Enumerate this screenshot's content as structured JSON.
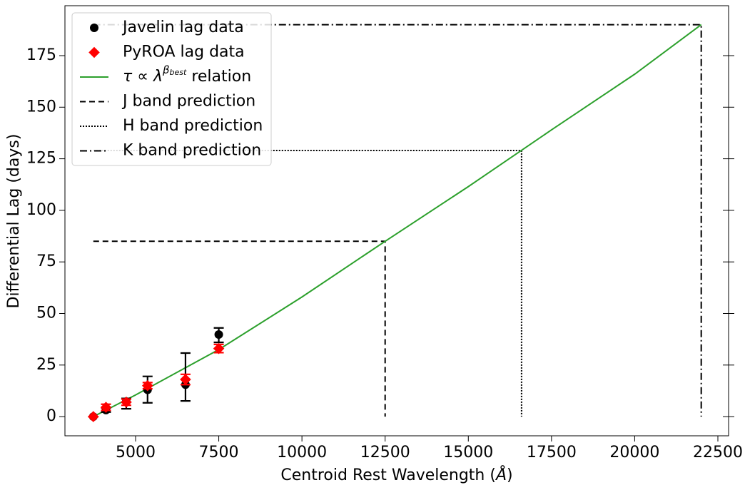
{
  "chart_data": {
    "type": "scatter",
    "xlabel": "Centroid Rest Wavelength (",
    "xlabel_unit": "Å",
    "xlabel_end": ")",
    "ylabel": "Differential Lag (days)",
    "xlim": [
      2877,
      22822
    ],
    "ylim": [
      -9.3,
      199.2
    ],
    "xticks": [
      5000,
      7500,
      10000,
      12500,
      15000,
      17500,
      20000,
      22500
    ],
    "yticks": [
      0,
      25,
      50,
      75,
      100,
      125,
      150,
      175
    ],
    "series": [
      {
        "name": "Javelin lag data",
        "color": "#000000",
        "marker": "circle",
        "x": [
          3730,
          4110,
          4720,
          5360,
          6500,
          7500
        ],
        "values": [
          0,
          3.2,
          7.3,
          13,
          15.5,
          39.8
        ],
        "err_minus": [
          0,
          1,
          3.5,
          6.3,
          7.9,
          3.8
        ],
        "err_plus": [
          0,
          1,
          1.5,
          6.5,
          15.3,
          3.2
        ]
      },
      {
        "name": "PyROA lag data",
        "color": "#ff0000",
        "marker": "diamond",
        "x": [
          3730,
          4110,
          4720,
          5360,
          6500,
          7500
        ],
        "values": [
          0,
          4.5,
          7,
          15,
          18,
          33
        ],
        "err_minus": [
          0,
          1.5,
          1.5,
          1.5,
          2.5,
          2
        ],
        "err_plus": [
          0,
          1.5,
          1.5,
          1.5,
          2.5,
          2
        ]
      }
    ],
    "relation": {
      "name": "τ ∝ λ",
      "name_sup": "β",
      "name_sub": "best",
      "name_suffix": " relation",
      "color": "#2ca02c",
      "x": [
        3730,
        5000,
        7500,
        10000,
        12500,
        15000,
        17500,
        20000,
        22000
      ],
      "values": [
        0,
        10.5,
        32.5,
        58,
        85,
        111.5,
        139,
        166,
        190
      ]
    },
    "predictions": [
      {
        "name": "J band prediction",
        "dash": "8,5",
        "x_start": 3730,
        "wavelength": 12500,
        "lag": 85
      },
      {
        "name": "H band prediction",
        "dash": "2,2",
        "x_start": 3730,
        "wavelength": 16600,
        "lag": 129
      },
      {
        "name": "K band prediction",
        "dash": "10,4,2,4",
        "x_start": 3730,
        "wavelength": 22000,
        "lag": 190
      }
    ]
  }
}
